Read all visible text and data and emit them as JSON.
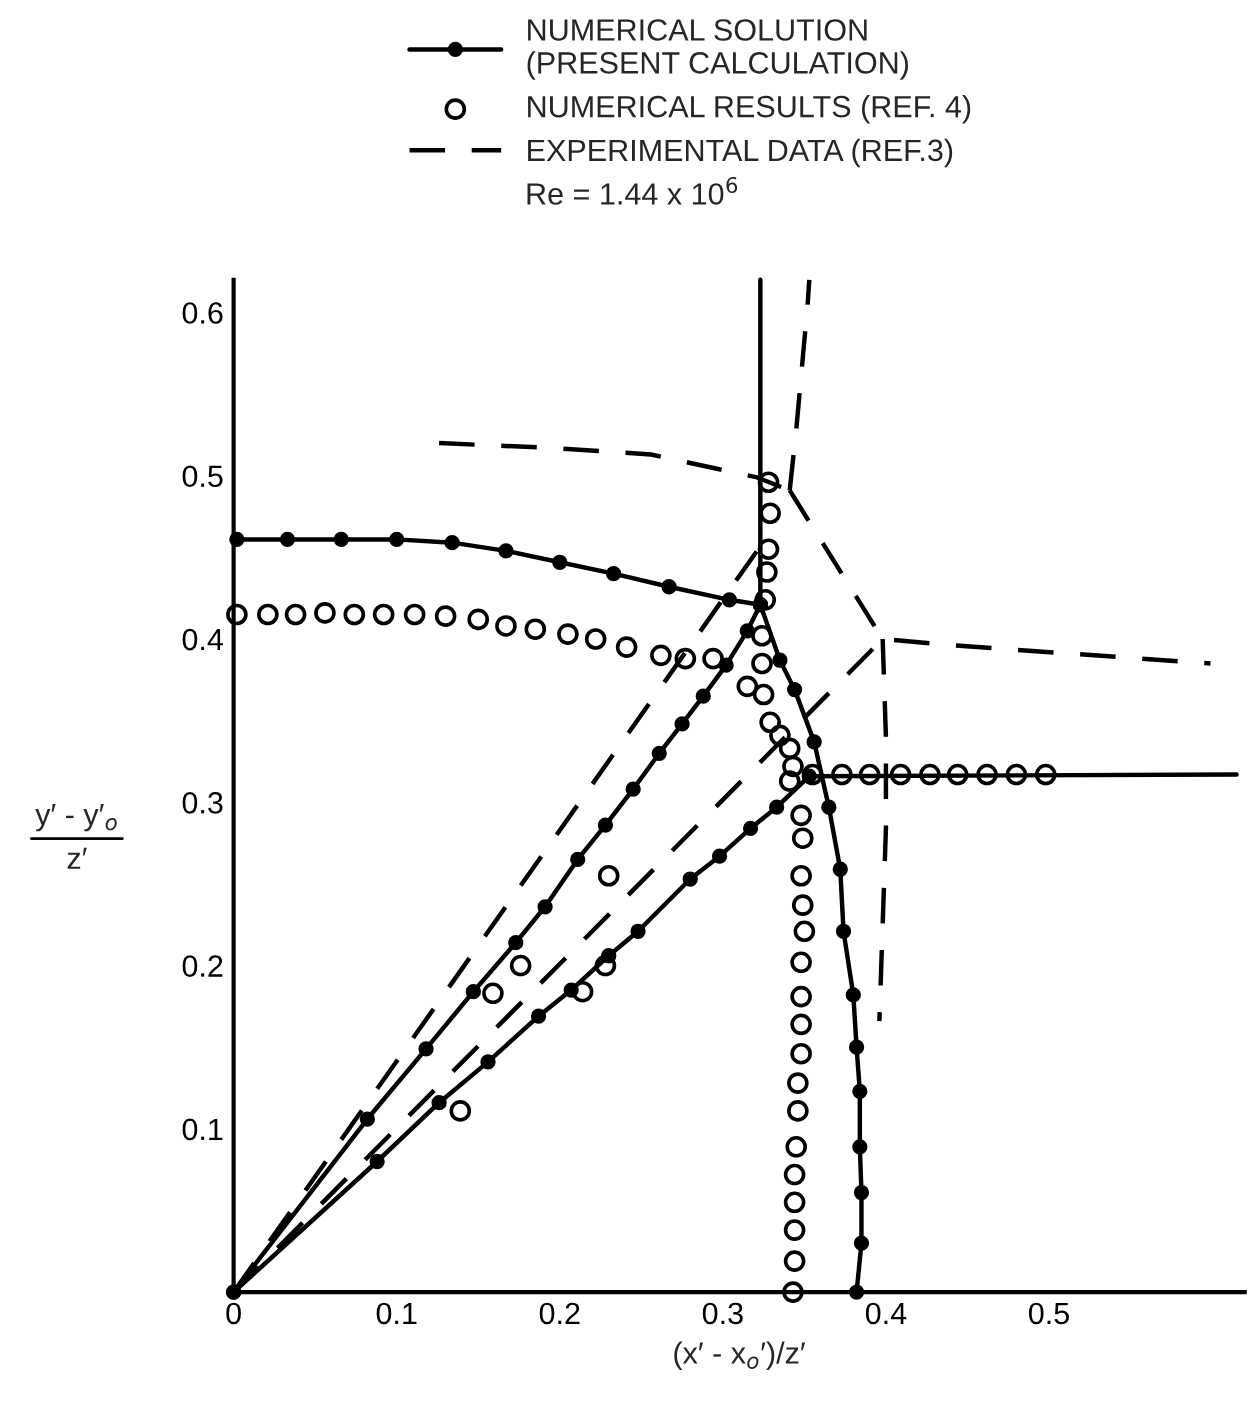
{
  "chart_data": {
    "type": "line",
    "xlabel": "(x′ - x$_{o}$′)/z′",
    "ylabel": "y′ - y′$_{o}$\nz′",
    "xlim": [
      0,
      0.62
    ],
    "ylim": [
      0,
      0.62
    ],
    "xticks": [
      0,
      0.1,
      0.2,
      0.3,
      0.4,
      0.5
    ],
    "yticks": [
      0.1,
      0.2,
      0.3,
      0.4,
      0.5,
      0.6
    ],
    "grid": false,
    "legend": "top",
    "annotations": [
      "Re = 1.44 x 10$^{6}$"
    ],
    "series": [
      {
        "name": "NUMERICAL SOLUTION\n(PRESENT CALCULATION)",
        "color": "#000000",
        "marker": "circle",
        "line_style": "solid",
        "x": [
          0.002,
          0.033,
          0.066,
          0.1,
          0.134,
          0.167,
          0.2,
          0.233,
          0.267,
          0.304,
          0.323
        ],
        "values": [
          0.461,
          0.461,
          0.461,
          0.461,
          0.459,
          0.454,
          0.447,
          0.44,
          0.432,
          0.424,
          0.421
        ]
      },
      {
        "type": "line",
        "color": "#000000",
        "line_style": "solid",
        "x": [
          0.323,
          0.323
        ],
        "values": [
          0.62,
          0.421
        ]
      },
      {
        "type": "line",
        "color": "#000000",
        "marker": "circle",
        "line_style": "solid",
        "x": [
          0.323,
          0.335,
          0.344,
          0.356,
          0.365,
          0.372,
          0.374,
          0.38,
          0.382,
          0.384,
          0.384,
          0.385,
          0.385,
          0.382
        ],
        "values": [
          0.421,
          0.387,
          0.369,
          0.337,
          0.297,
          0.259,
          0.221,
          0.182,
          0.15,
          0.123,
          0.089,
          0.061,
          0.03,
          0
        ]
      },
      {
        "type": "line",
        "color": "#000000",
        "marker": "circle",
        "line_style": "solid",
        "x": [
          0,
          0.082,
          0.118,
          0.147,
          0.173,
          0.191,
          0.211,
          0.228,
          0.245,
          0.261,
          0.275,
          0.288,
          0.302,
          0.315,
          0.323
        ],
        "values": [
          0,
          0.106,
          0.149,
          0.184,
          0.214,
          0.236,
          0.265,
          0.286,
          0.308,
          0.33,
          0.348,
          0.365,
          0.384,
          0.405,
          0.421
        ]
      },
      {
        "type": "line",
        "color": "#000000",
        "marker": "circle",
        "line_style": "solid",
        "x": [
          0,
          0.088,
          0.126,
          0.156,
          0.187,
          0.207,
          0.23,
          0.248,
          0.28,
          0.298,
          0.317,
          0.333,
          0.353
        ],
        "values": [
          0,
          0.08,
          0.116,
          0.141,
          0.169,
          0.185,
          0.206,
          0.221,
          0.253,
          0.267,
          0.284,
          0.297,
          0.316
        ]
      },
      {
        "type": "line",
        "color": "#000000",
        "marker": "none",
        "line_style": "solid",
        "x": [
          0.353,
          0.615
        ],
        "values": [
          0.316,
          0.317
        ]
      },
      {
        "name": "NUMERICAL RESULTS (REF. 4)",
        "type": "scatter",
        "color": "#000000",
        "marker": "circle",
        "x": [
          0.002,
          0.021,
          0.038,
          0.056,
          0.074,
          0.092,
          0.111,
          0.13,
          0.15,
          0.167,
          0.185,
          0.205,
          0.222,
          0.241,
          0.262,
          0.277,
          0.294,
          0.328,
          0.329,
          0.328,
          0.327,
          0.326,
          0.324,
          0.324,
          0.315,
          0.325,
          0.329,
          0.335,
          0.341,
          0.343,
          0.341,
          0.355,
          0.373,
          0.39,
          0.409,
          0.427,
          0.444,
          0.462,
          0.48,
          0.498,
          0.348,
          0.349,
          0.348,
          0.349,
          0.35,
          0.348,
          0.348,
          0.348,
          0.348,
          0.346,
          0.346,
          0.345,
          0.344,
          0.344,
          0.344,
          0.344,
          0.343,
          0.23,
          0.176,
          0.159,
          0.214,
          0.228,
          0.139
        ],
        "values": [
          0.415,
          0.415,
          0.415,
          0.416,
          0.415,
          0.415,
          0.415,
          0.414,
          0.412,
          0.408,
          0.406,
          0.403,
          0.4,
          0.395,
          0.39,
          0.388,
          0.388,
          0.496,
          0.477,
          0.455,
          0.441,
          0.424,
          0.402,
          0.385,
          0.371,
          0.366,
          0.349,
          0.341,
          0.333,
          0.322,
          0.313,
          0.317,
          0.317,
          0.317,
          0.317,
          0.317,
          0.317,
          0.317,
          0.317,
          0.317,
          0.292,
          0.278,
          0.255,
          0.237,
          0.221,
          0.202,
          0.181,
          0.164,
          0.146,
          0.128,
          0.111,
          0.089,
          0.072,
          0.055,
          0.038,
          0.019,
          0.0,
          0.255,
          0.2,
          0.183,
          0.184,
          0.2,
          0.111
        ]
      },
      {
        "name": "EXPERIMENTAL DATA (REF.3)",
        "type": "line",
        "color": "#000000",
        "marker": "none",
        "line_style": "dashed",
        "x": [
          0.126,
          0.195,
          0.256,
          0.321,
          0.341
        ],
        "values": [
          0.52,
          0.517,
          0.513,
          0.499,
          0.491
        ]
      },
      {
        "type": "line",
        "color": "#000000",
        "marker": "none",
        "line_style": "dashed",
        "x": [
          0.341,
          0.345,
          0.349,
          0.352,
          0.353
        ],
        "values": [
          0.491,
          0.528,
          0.572,
          0.605,
          0.62
        ]
      },
      {
        "type": "line",
        "color": "#000000",
        "marker": "none",
        "line_style": "dashed",
        "x": [
          0.341,
          0.398,
          0.443,
          0.599
        ],
        "values": [
          0.491,
          0.4,
          0.396,
          0.385
        ]
      },
      {
        "type": "line",
        "color": "#000000",
        "marker": "none",
        "line_style": "dashed",
        "x": [
          0.398,
          0.4,
          0.4,
          0.396
        ],
        "values": [
          0.4,
          0.34,
          0.284,
          0.166
        ]
      },
      {
        "type": "line",
        "color": "#000000",
        "marker": "none",
        "line_style": "dashed",
        "x": [
          0,
          0.321
        ],
        "values": [
          0,
          0.454
        ]
      },
      {
        "type": "line",
        "color": "#000000",
        "marker": "none",
        "line_style": "dashed",
        "x": [
          0,
          0.398
        ],
        "values": [
          0,
          0.4
        ]
      }
    ]
  }
}
